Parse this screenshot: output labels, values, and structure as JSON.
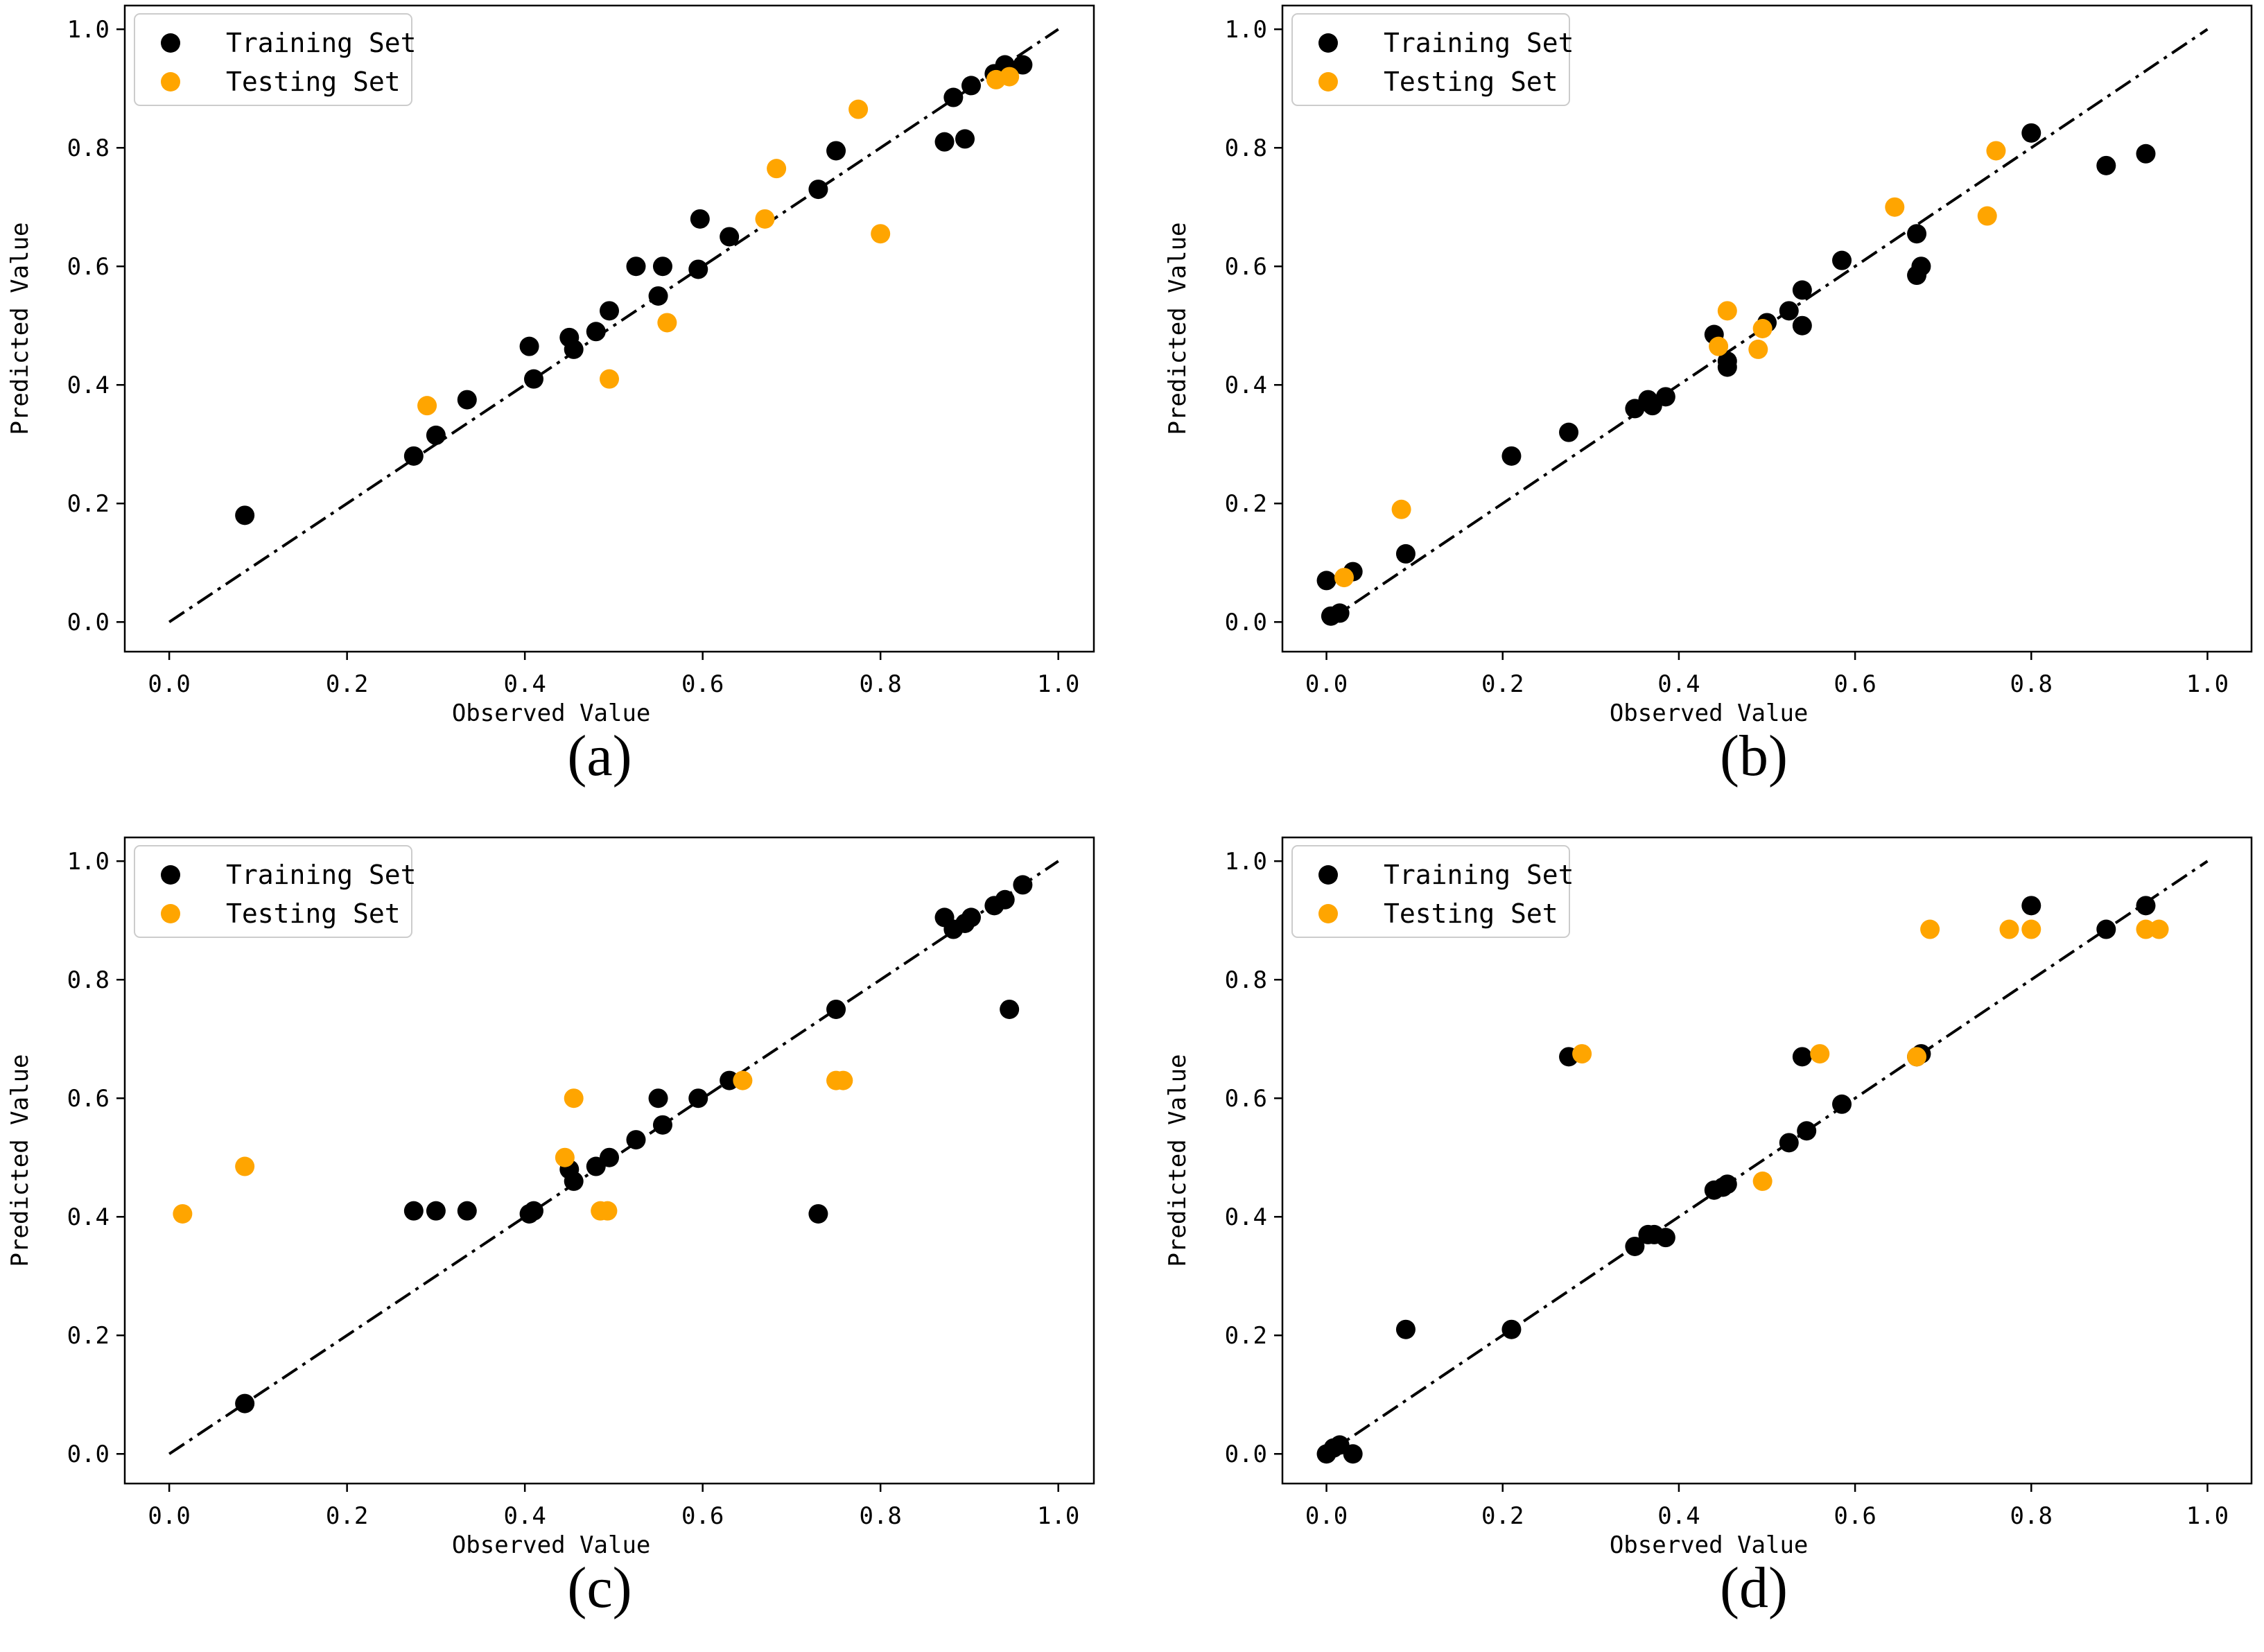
{
  "colors": {
    "training": "#000000",
    "testing": "#ffa500",
    "identity_line": "#000000"
  },
  "chart_data": [
    {
      "type": "scatter",
      "panel_label": "(a)",
      "xlabel": "Observed Value",
      "ylabel": "Predicted Value",
      "xlim": [
        -0.05,
        1.04
      ],
      "ylim": [
        -0.05,
        1.04
      ],
      "xticks": [
        "0.0",
        "0.2",
        "0.4",
        "0.6",
        "0.8",
        "1.0"
      ],
      "yticks": [
        "0.0",
        "0.2",
        "0.4",
        "0.6",
        "0.8",
        "1.0"
      ],
      "identity_line": {
        "style": "dash-dot",
        "from": [
          0,
          0
        ],
        "to": [
          1,
          1
        ]
      },
      "legend": {
        "position": "top-left",
        "entries": [
          "Training Set",
          "Testing Set"
        ]
      },
      "series": [
        {
          "name": "Training Set",
          "color": "#000000",
          "x": [
            0.085,
            0.275,
            0.3,
            0.335,
            0.405,
            0.41,
            0.45,
            0.455,
            0.48,
            0.495,
            0.525,
            0.55,
            0.555,
            0.595,
            0.597,
            0.63,
            0.73,
            0.75,
            0.872,
            0.882,
            0.895,
            0.902,
            0.928,
            0.94,
            0.96
          ],
          "y": [
            0.18,
            0.28,
            0.315,
            0.375,
            0.465,
            0.41,
            0.48,
            0.46,
            0.49,
            0.525,
            0.6,
            0.55,
            0.6,
            0.595,
            0.68,
            0.65,
            0.73,
            0.795,
            0.81,
            0.885,
            0.815,
            0.905,
            0.925,
            0.94,
            0.94
          ]
        },
        {
          "name": "Testing Set",
          "color": "#ffa500",
          "x": [
            0.29,
            0.495,
            0.56,
            0.67,
            0.683,
            0.775,
            0.8,
            0.93,
            0.945
          ],
          "y": [
            0.365,
            0.41,
            0.505,
            0.68,
            0.765,
            0.865,
            0.655,
            0.915,
            0.92
          ]
        }
      ]
    },
    {
      "type": "scatter",
      "panel_label": "(b)",
      "xlabel": "Observed Value",
      "ylabel": "Predicted Value",
      "xlim": [
        -0.05,
        1.05
      ],
      "ylim": [
        -0.05,
        1.04
      ],
      "xticks": [
        "0.0",
        "0.2",
        "0.4",
        "0.6",
        "0.8",
        "1.0"
      ],
      "yticks": [
        "0.0",
        "0.2",
        "0.4",
        "0.6",
        "0.8",
        "1.0"
      ],
      "identity_line": {
        "style": "dash-dot",
        "from": [
          0,
          0
        ],
        "to": [
          1,
          1
        ]
      },
      "legend": {
        "position": "top-left",
        "entries": [
          "Training Set",
          "Testing Set"
        ]
      },
      "series": [
        {
          "name": "Training Set",
          "color": "#000000",
          "x": [
            0.0,
            0.005,
            0.015,
            0.03,
            0.09,
            0.21,
            0.275,
            0.35,
            0.365,
            0.37,
            0.385,
            0.44,
            0.455,
            0.455,
            0.5,
            0.525,
            0.54,
            0.54,
            0.585,
            0.67,
            0.675,
            0.67,
            0.8,
            0.885,
            0.93
          ],
          "y": [
            0.07,
            0.01,
            0.015,
            0.085,
            0.115,
            0.28,
            0.32,
            0.36,
            0.375,
            0.365,
            0.38,
            0.485,
            0.44,
            0.43,
            0.505,
            0.525,
            0.56,
            0.5,
            0.61,
            0.655,
            0.6,
            0.585,
            0.825,
            0.77,
            0.79
          ]
        },
        {
          "name": "Testing Set",
          "color": "#ffa500",
          "x": [
            0.02,
            0.085,
            0.445,
            0.455,
            0.49,
            0.495,
            0.645,
            0.75,
            0.76
          ],
          "y": [
            0.075,
            0.19,
            0.465,
            0.525,
            0.46,
            0.495,
            0.7,
            0.685,
            0.795
          ]
        }
      ]
    },
    {
      "type": "scatter",
      "panel_label": "(c)",
      "xlabel": "Observed Value",
      "ylabel": "Predicted Value",
      "xlim": [
        -0.05,
        1.04
      ],
      "ylim": [
        -0.05,
        1.04
      ],
      "xticks": [
        "0.0",
        "0.2",
        "0.4",
        "0.6",
        "0.8",
        "1.0"
      ],
      "yticks": [
        "0.0",
        "0.2",
        "0.4",
        "0.6",
        "0.8",
        "1.0"
      ],
      "identity_line": {
        "style": "dash-dot",
        "from": [
          0,
          0
        ],
        "to": [
          1,
          1
        ]
      },
      "legend": {
        "position": "top-left",
        "entries": [
          "Training Set",
          "Testing Set"
        ]
      },
      "series": [
        {
          "name": "Training Set",
          "color": "#000000",
          "x": [
            0.085,
            0.275,
            0.3,
            0.335,
            0.405,
            0.41,
            0.45,
            0.455,
            0.48,
            0.495,
            0.525,
            0.55,
            0.555,
            0.595,
            0.63,
            0.73,
            0.75,
            0.872,
            0.882,
            0.895,
            0.902,
            0.928,
            0.94,
            0.945,
            0.96
          ],
          "y": [
            0.085,
            0.41,
            0.41,
            0.41,
            0.405,
            0.41,
            0.48,
            0.46,
            0.485,
            0.5,
            0.53,
            0.6,
            0.555,
            0.6,
            0.63,
            0.405,
            0.75,
            0.905,
            0.885,
            0.895,
            0.905,
            0.925,
            0.935,
            0.75,
            0.96
          ]
        },
        {
          "name": "Testing Set",
          "color": "#ffa500",
          "x": [
            0.015,
            0.085,
            0.445,
            0.455,
            0.485,
            0.493,
            0.645,
            0.75,
            0.758
          ],
          "y": [
            0.405,
            0.485,
            0.5,
            0.6,
            0.41,
            0.41,
            0.63,
            0.63,
            0.63
          ]
        }
      ]
    },
    {
      "type": "scatter",
      "panel_label": "(d)",
      "xlabel": "Observed Value",
      "ylabel": "Predicted Value",
      "xlim": [
        -0.05,
        1.05
      ],
      "ylim": [
        -0.05,
        1.04
      ],
      "xticks": [
        "0.0",
        "0.2",
        "0.4",
        "0.6",
        "0.8",
        "1.0"
      ],
      "yticks": [
        "0.0",
        "0.2",
        "0.4",
        "0.6",
        "0.8",
        "1.0"
      ],
      "identity_line": {
        "style": "dash-dot",
        "from": [
          0,
          0
        ],
        "to": [
          1,
          1
        ]
      },
      "legend": {
        "position": "top-left",
        "entries": [
          "Training Set",
          "Testing Set"
        ]
      },
      "series": [
        {
          "name": "Training Set",
          "color": "#000000",
          "x": [
            0.0,
            0.008,
            0.015,
            0.03,
            0.09,
            0.21,
            0.275,
            0.35,
            0.365,
            0.372,
            0.385,
            0.44,
            0.45,
            0.455,
            0.525,
            0.54,
            0.545,
            0.585,
            0.67,
            0.675,
            0.8,
            0.885,
            0.93
          ],
          "y": [
            0.0,
            0.01,
            0.015,
            0.0,
            0.21,
            0.21,
            0.67,
            0.35,
            0.37,
            0.37,
            0.365,
            0.445,
            0.45,
            0.455,
            0.525,
            0.67,
            0.545,
            0.59,
            0.67,
            0.675,
            0.925,
            0.885,
            0.925
          ]
        },
        {
          "name": "Testing Set",
          "color": "#ffa500",
          "x": [
            0.29,
            0.495,
            0.56,
            0.67,
            0.685,
            0.775,
            0.8,
            0.93,
            0.945
          ],
          "y": [
            0.675,
            0.46,
            0.675,
            0.67,
            0.885,
            0.885,
            0.885,
            0.885,
            0.885
          ]
        }
      ]
    }
  ]
}
